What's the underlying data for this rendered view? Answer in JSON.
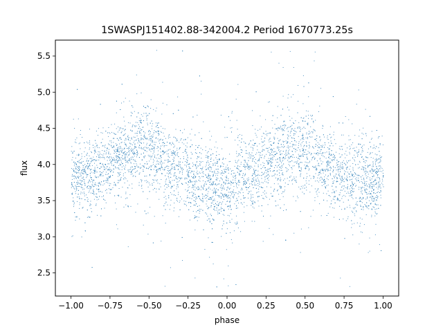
{
  "chart_data": {
    "type": "scatter",
    "title": "1SWASPJ151402.88-342004.2 Period 1670773.25s",
    "xlabel": "phase",
    "ylabel": "flux",
    "xlim": [
      -1.1,
      1.1
    ],
    "ylim": [
      2.18,
      5.72
    ],
    "grid": false,
    "legend": "none",
    "point_color": "#1f77b4",
    "xticks": [
      -1.0,
      -0.75,
      -0.5,
      -0.25,
      0.0,
      0.25,
      0.5,
      0.75,
      1.0
    ],
    "xtick_labels": [
      "−1.00",
      "−0.75",
      "−0.50",
      "−0.25",
      "0.00",
      "0.25",
      "0.50",
      "0.75",
      "1.00"
    ],
    "yticks": [
      2.5,
      3.0,
      3.5,
      4.0,
      4.5,
      5.0,
      5.5
    ],
    "ytick_labels": [
      "2.5",
      "3.0",
      "3.5",
      "4.0",
      "4.5",
      "5.0",
      "5.5"
    ],
    "series": [
      {
        "x": [
          -1.0,
          -0.9,
          -0.8,
          -0.7,
          -0.6,
          -0.5,
          -0.4,
          -0.3,
          -0.2,
          -0.1,
          0.0,
          0.1,
          0.2,
          0.3,
          0.4,
          0.5,
          0.6,
          0.7,
          0.8,
          0.9,
          1.0
        ],
        "y": [
          3.8,
          3.85,
          3.95,
          4.1,
          4.2,
          4.2,
          4.05,
          3.9,
          3.75,
          3.7,
          3.75,
          3.85,
          3.95,
          4.1,
          4.2,
          4.2,
          4.05,
          3.9,
          3.8,
          3.75,
          3.8
        ],
        "spread": [
          0.25,
          0.25,
          0.25,
          0.28,
          0.3,
          0.3,
          0.28,
          0.26,
          0.28,
          0.3,
          0.3,
          0.28,
          0.26,
          0.28,
          0.3,
          0.3,
          0.28,
          0.26,
          0.28,
          0.28,
          0.25
        ]
      }
    ]
  }
}
